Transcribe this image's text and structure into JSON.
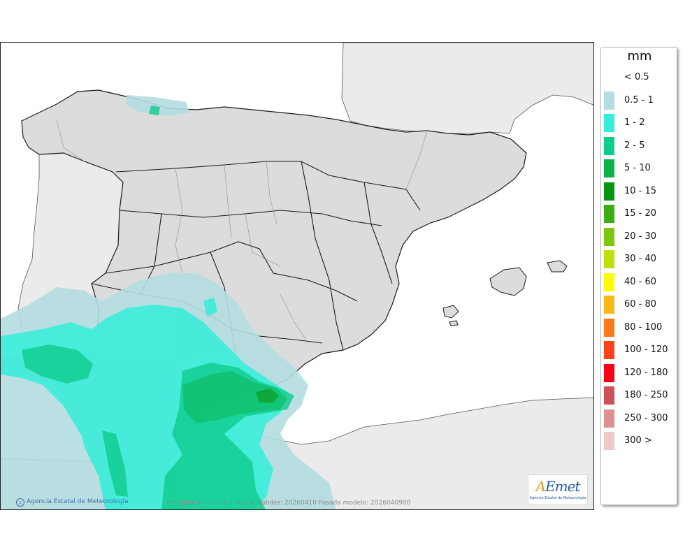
{
  "legend": {
    "unit": "mm",
    "items": [
      {
        "label": "< 0.5",
        "color": "#ffffff"
      },
      {
        "label": "0.5 - 1",
        "color": "#b4dde1"
      },
      {
        "label": "1 - 2",
        "color": "#34eed9"
      },
      {
        "label": "2 - 5",
        "color": "#0ecc8c"
      },
      {
        "label": "5 - 10",
        "color": "#0cb248"
      },
      {
        "label": "10 - 15",
        "color": "#089612"
      },
      {
        "label": "15 - 20",
        "color": "#3ead14"
      },
      {
        "label": "20 - 30",
        "color": "#7ec70e"
      },
      {
        "label": "30 - 40",
        "color": "#bde10a"
      },
      {
        "label": "40 - 60",
        "color": "#fcfc04"
      },
      {
        "label": "60 - 80",
        "color": "#fcb816"
      },
      {
        "label": "80 - 100",
        "color": "#fc7818"
      },
      {
        "label": "100 - 120",
        "color": "#fc441a"
      },
      {
        "label": "120 - 180",
        "color": "#fc0016"
      },
      {
        "label": "180 - 250",
        "color": "#cc5056"
      },
      {
        "label": "250 - 300",
        "color": "#de9090"
      },
      {
        "label": "300 >",
        "color": "#f0c8c8"
      }
    ]
  },
  "footer": {
    "credit": "Agencia Estatal de Meteorología",
    "caption": "Precipitación en 24 h media. Validez: 20260410 Pasada modelo: 2026040900"
  },
  "logo": {
    "wordmark_a": "A",
    "wordmark_rest": "Emet",
    "subtitle": "Agencia Estatal de Meteorología"
  },
  "colors": {
    "sea": "#ffffff",
    "land_foreign": "#ebebeb",
    "land_spain": "#dcdcdc",
    "border": "#1a1a1a",
    "province": "#9a9a9a"
  }
}
